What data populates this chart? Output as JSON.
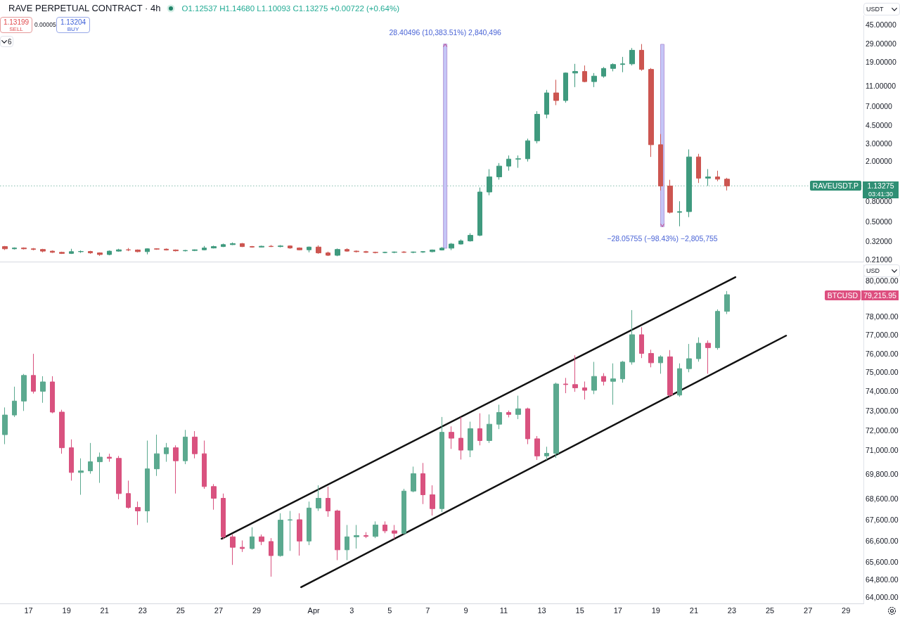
{
  "chart_data": [
    {
      "type": "candlestick",
      "title": "RAVE PERPETUAL CONTRACT · 4h",
      "subtitle": "O1.12537 H1.14680 L1.10093 C1.13275 +0.00722 (+0.64%)",
      "annotations": [
        "1.13199",
        "SELL",
        "0.00005",
        "1.13204",
        "BUY",
        "6",
        "USDT",
        "1.13275",
        "03:41:30"
      ],
      "log": true,
      "tick_labels": "y",
      "xlim": [
        "--03-15T12:00",
        "--04-29T22:00"
      ],
      "ylim": [
        0.2,
        55
      ],
      "yticks": [
        {
          "value": 45,
          "label": "45.00000"
        },
        {
          "value": 29,
          "label": "29.00000"
        },
        {
          "value": 19,
          "label": "19.00000"
        },
        {
          "value": 11,
          "label": "11.00000"
        },
        {
          "value": 7,
          "label": "7.00000"
        },
        {
          "value": 4.5,
          "label": "4.50000"
        },
        {
          "value": 3,
          "label": "3.00000"
        },
        {
          "value": 2,
          "label": "2.00000"
        },
        {
          "value": 0.8,
          "label": "0.80000"
        },
        {
          "value": 0.5,
          "label": "0.50000"
        },
        {
          "value": 0.32,
          "label": "0.32000"
        },
        {
          "value": 0.21,
          "label": "0.21000"
        }
      ],
      "ref_lines": [
        {
          "axis": "y",
          "value": 1.13275,
          "label": "RAVEUSDT.P",
          "color": "#2f8f74",
          "line_style": "dotted"
        }
      ],
      "x": [
        "--03-15T18:00",
        "--03-16T06:00",
        "--03-16T18:00",
        "--03-17T06:00",
        "--03-17T18:00",
        "--03-18T06:00",
        "--03-18T18:00",
        "--03-19T06:00",
        "--03-19T18:00",
        "--03-20T06:00",
        "--03-20T18:00",
        "--03-21T06:00",
        "--03-21T18:00",
        "--03-22T06:00",
        "--03-22T18:00",
        "--03-23T06:00",
        "--03-23T18:00",
        "--03-24T06:00",
        "--03-24T18:00",
        "--03-25T06:00",
        "--03-25T18:00",
        "--03-26T06:00",
        "--03-26T18:00",
        "--03-27T06:00",
        "--03-27T18:00",
        "--03-28T06:00",
        "--03-28T18:00",
        "--03-29T06:00",
        "--03-29T18:00",
        "--03-30T06:00",
        "--03-30T18:00",
        "--03-31T06:00",
        "--03-31T18:00",
        "--04-01T06:00",
        "--04-01T18:00",
        "--04-02T06:00",
        "--04-02T18:00",
        "--04-03T06:00",
        "--04-03T18:00",
        "--04-04T06:00",
        "--04-04T18:00",
        "--04-05T06:00",
        "--04-05T18:00",
        "--04-06T06:00",
        "--04-06T18:00",
        "--04-07T06:00",
        "--04-07T18:00",
        "--04-08T06:00",
        "--04-08T18:00",
        "--04-09T06:00",
        "--04-09T18:00",
        "--04-10T06:00",
        "--04-10T18:00",
        "--04-11T06:00",
        "--04-11T18:00",
        "--04-12T06:00",
        "--04-12T18:00",
        "--04-13T06:00",
        "--04-13T18:00",
        "--04-14T06:00",
        "--04-14T18:00",
        "--04-15T06:00",
        "--04-15T18:00",
        "--04-16T06:00",
        "--04-16T18:00",
        "--04-17T06:00",
        "--04-17T18:00",
        "--04-18T06:00",
        "--04-18T18:00",
        "--04-19T06:00",
        "--04-19T18:00",
        "--04-20T06:00",
        "--04-20T18:00",
        "--04-21T06:00",
        "--04-21T18:00",
        "--04-22T06:00",
        "--04-22T18:00"
      ],
      "ohlc": [
        [
          0.284,
          0.288,
          0.263,
          0.27
        ],
        [
          0.27,
          0.279,
          0.266,
          0.275
        ],
        [
          0.275,
          0.279,
          0.266,
          0.27
        ],
        [
          0.27,
          0.275,
          0.261,
          0.266
        ],
        [
          0.266,
          0.27,
          0.249,
          0.256
        ],
        [
          0.256,
          0.26,
          0.246,
          0.249
        ],
        [
          0.249,
          0.253,
          0.24,
          0.243
        ],
        [
          0.243,
          0.27,
          0.24,
          0.253
        ],
        [
          0.253,
          0.26,
          0.246,
          0.254
        ],
        [
          0.254,
          0.258,
          0.241,
          0.246
        ],
        [
          0.246,
          0.249,
          0.23,
          0.237
        ],
        [
          0.237,
          0.26,
          0.233,
          0.256
        ],
        [
          0.256,
          0.27,
          0.253,
          0.264
        ],
        [
          0.264,
          0.275,
          0.256,
          0.263
        ],
        [
          0.263,
          0.266,
          0.249,
          0.253
        ],
        [
          0.253,
          0.273,
          0.238,
          0.27
        ],
        [
          0.27,
          0.273,
          0.264,
          0.268
        ],
        [
          0.268,
          0.272,
          0.26,
          0.263
        ],
        [
          0.263,
          0.266,
          0.254,
          0.258
        ],
        [
          0.258,
          0.263,
          0.254,
          0.26
        ],
        [
          0.26,
          0.266,
          0.256,
          0.264
        ],
        [
          0.264,
          0.288,
          0.261,
          0.275
        ],
        [
          0.275,
          0.29,
          0.272,
          0.284
        ],
        [
          0.284,
          0.304,
          0.281,
          0.297
        ],
        [
          0.297,
          0.312,
          0.294,
          0.304
        ],
        [
          0.304,
          0.308,
          0.281,
          0.284
        ],
        [
          0.284,
          0.288,
          0.277,
          0.281
        ],
        [
          0.281,
          0.29,
          0.279,
          0.286
        ],
        [
          0.286,
          0.294,
          0.281,
          0.284
        ],
        [
          0.284,
          0.294,
          0.279,
          0.288
        ],
        [
          0.288,
          0.292,
          0.27,
          0.275
        ],
        [
          0.275,
          0.279,
          0.261,
          0.264
        ],
        [
          0.264,
          0.284,
          0.249,
          0.281
        ],
        [
          0.281,
          0.292,
          0.241,
          0.246
        ],
        [
          0.246,
          0.253,
          0.229,
          0.233
        ],
        [
          0.233,
          0.272,
          0.228,
          0.266
        ],
        [
          0.266,
          0.273,
          0.253,
          0.256
        ],
        [
          0.256,
          0.26,
          0.248,
          0.253
        ],
        [
          0.253,
          0.258,
          0.246,
          0.249
        ],
        [
          0.249,
          0.253,
          0.243,
          0.248
        ],
        [
          0.248,
          0.253,
          0.244,
          0.249
        ],
        [
          0.249,
          0.254,
          0.244,
          0.251
        ],
        [
          0.251,
          0.256,
          0.246,
          0.249
        ],
        [
          0.249,
          0.254,
          0.244,
          0.251
        ],
        [
          0.251,
          0.256,
          0.246,
          0.253
        ],
        [
          0.253,
          0.266,
          0.249,
          0.263
        ],
        [
          0.263,
          0.281,
          0.26,
          0.274
        ],
        [
          0.274,
          0.308,
          0.262,
          0.301
        ],
        [
          0.301,
          0.334,
          0.298,
          0.323
        ],
        [
          0.323,
          0.385,
          0.318,
          0.367
        ],
        [
          0.367,
          1.091,
          0.36,
          0.985
        ],
        [
          0.985,
          1.657,
          0.915,
          1.392
        ],
        [
          1.392,
          1.905,
          1.304,
          1.778
        ],
        [
          1.778,
          2.265,
          1.601,
          2.085
        ],
        [
          2.085,
          2.265,
          1.71,
          2.1
        ],
        [
          2.1,
          3.322,
          1.972,
          3.165
        ],
        [
          3.165,
          6.21,
          2.986,
          5.79
        ],
        [
          5.79,
          10.1,
          5.28,
          9.42
        ],
        [
          9.42,
          12.71,
          7.13,
          7.92
        ],
        [
          7.92,
          15.02,
          7.55,
          14.81
        ],
        [
          14.81,
          18.26,
          10.75,
          15.35
        ],
        [
          15.35,
          17.6,
          12.0,
          12.18
        ],
        [
          12.18,
          14.81,
          10.75,
          13.81
        ],
        [
          13.81,
          17.0,
          13.3,
          16.45
        ],
        [
          16.45,
          18.5,
          15.4,
          18.0
        ],
        [
          18.0,
          21.4,
          15.1,
          18.26
        ],
        [
          18.26,
          26.2,
          17.6,
          24.9
        ],
        [
          24.9,
          28.68,
          15.6,
          16.1
        ],
        [
          16.1,
          16.6,
          2.19,
          2.89
        ],
        [
          2.89,
          3.69,
          1.02,
          1.13
        ],
        [
          1.13,
          1.3,
          0.604,
          0.62
        ],
        [
          0.62,
          0.798,
          0.451,
          0.63
        ],
        [
          0.63,
          2.6,
          0.556,
          2.19
        ],
        [
          2.19,
          2.35,
          1.21,
          1.35
        ],
        [
          1.35,
          1.66,
          1.13,
          1.39
        ],
        [
          1.39,
          1.6,
          1.26,
          1.32
        ],
        [
          1.32,
          1.36,
          1.02,
          1.13275
        ]
      ],
      "colors": [
        "#cc5550",
        "#3f9a7e",
        "#cc5550",
        "#cc5550",
        "#cc5550",
        "#cc5550",
        "#cc5550",
        "#3f9a7e",
        "#3f9a7e",
        "#cc5550",
        "#cc5550",
        "#3f9a7e",
        "#3f9a7e",
        "#cc5550",
        "#cc5550",
        "#3f9a7e",
        "#cc5550",
        "#cc5550",
        "#cc5550",
        "#3f9a7e",
        "#3f9a7e",
        "#3f9a7e",
        "#3f9a7e",
        "#3f9a7e",
        "#3f9a7e",
        "#cc5550",
        "#cc5550",
        "#3f9a7e",
        "#cc5550",
        "#3f9a7e",
        "#cc5550",
        "#cc5550",
        "#3f9a7e",
        "#cc5550",
        "#cc5550",
        "#3f9a7e",
        "#cc5550",
        "#cc5550",
        "#cc5550",
        "#cc5550",
        "#3f9a7e",
        "#3f9a7e",
        "#cc5550",
        "#3f9a7e",
        "#3f9a7e",
        "#3f9a7e",
        "#3f9a7e",
        "#3f9a7e",
        "#3f9a7e",
        "#3f9a7e",
        "#3f9a7e",
        "#3f9a7e",
        "#3f9a7e",
        "#3f9a7e",
        "#3f9a7e",
        "#3f9a7e",
        "#3f9a7e",
        "#3f9a7e",
        "#cc5550",
        "#3f9a7e",
        "#3f9a7e",
        "#cc5550",
        "#3f9a7e",
        "#3f9a7e",
        "#3f9a7e",
        "#3f9a7e",
        "#3f9a7e",
        "#cc5550",
        "#cc5550",
        "#cc5550",
        "#cc5550",
        "#3f9a7e",
        "#3f9a7e",
        "#cc5550",
        "#3f9a7e",
        "#cc5550",
        "#cc5550"
      ],
      "series": [
        {
          "type": "bar",
          "x": [
            "--04-07T22:00",
            "--04-19T08:10"
          ],
          "base": [
            0.2736,
            28.505
          ],
          "values": [
            28.40496,
            -28.05755
          ],
          "color": "#c5c6f7",
          "value_labels": [
            "28.40496 (10,383.51%) 2,840,496",
            "−28.05755 (−98.43%) −2,805,755"
          ]
        }
      ]
    },
    {
      "type": "candlestick",
      "annotations": [
        "USD",
        "BTCUSD",
        "79,215.95"
      ],
      "log": true,
      "xlim": [
        "--03-15T12:00",
        "--04-29T22:00"
      ],
      "xticks": [
        {
          "value": "--03-17",
          "label": "17"
        },
        {
          "value": "--03-19",
          "label": "19"
        },
        {
          "value": "--03-21",
          "label": "21"
        },
        {
          "value": "--03-23",
          "label": "23"
        },
        {
          "value": "--03-25",
          "label": "25"
        },
        {
          "value": "--03-27",
          "label": "27"
        },
        {
          "value": "--03-29",
          "label": "29"
        },
        {
          "value": "--04-01",
          "label": "Apr"
        },
        {
          "value": "--04-03",
          "label": "3"
        },
        {
          "value": "--04-05",
          "label": "5"
        },
        {
          "value": "--04-07",
          "label": "7"
        },
        {
          "value": "--04-09",
          "label": "9"
        },
        {
          "value": "--04-11",
          "label": "11"
        },
        {
          "value": "--04-13",
          "label": "13"
        },
        {
          "value": "--04-15",
          "label": "15"
        },
        {
          "value": "--04-17",
          "label": "17"
        },
        {
          "value": "--04-19",
          "label": "19"
        },
        {
          "value": "--04-21",
          "label": "21"
        },
        {
          "value": "--04-23",
          "label": "23"
        },
        {
          "value": "--04-25",
          "label": "25"
        },
        {
          "value": "--04-27",
          "label": "27"
        },
        {
          "value": "--04-29",
          "label": "29"
        }
      ],
      "ylim": [
        63700,
        80900
      ],
      "yticks": [
        {
          "value": 80000,
          "label": "80,000.00"
        },
        {
          "value": 78000,
          "label": "78,000.00"
        },
        {
          "value": 77000,
          "label": "77,000.00"
        },
        {
          "value": 76000,
          "label": "76,000.00"
        },
        {
          "value": 75000,
          "label": "75,000.00"
        },
        {
          "value": 74000,
          "label": "74,000.00"
        },
        {
          "value": 73000,
          "label": "73,000.00"
        },
        {
          "value": 72000,
          "label": "72,000.00"
        },
        {
          "value": 71000,
          "label": "71,000.00"
        },
        {
          "value": 69800,
          "label": "69,800.00"
        },
        {
          "value": 68600,
          "label": "68,600.00"
        },
        {
          "value": 67600,
          "label": "67,600.00"
        },
        {
          "value": 66600,
          "label": "66,600.00"
        },
        {
          "value": 65600,
          "label": "65,600.00"
        },
        {
          "value": 64800,
          "label": "64,800.00"
        },
        {
          "value": 64000,
          "label": "64,000.00"
        }
      ],
      "x": [
        "--03-15T18:00",
        "--03-16T06:00",
        "--03-16T18:00",
        "--03-17T06:00",
        "--03-17T18:00",
        "--03-18T06:00",
        "--03-18T18:00",
        "--03-19T06:00",
        "--03-19T18:00",
        "--03-20T06:00",
        "--03-20T18:00",
        "--03-21T06:00",
        "--03-21T18:00",
        "--03-22T06:00",
        "--03-22T18:00",
        "--03-23T06:00",
        "--03-23T18:00",
        "--03-24T06:00",
        "--03-24T18:00",
        "--03-25T06:00",
        "--03-25T18:00",
        "--03-26T06:00",
        "--03-26T18:00",
        "--03-27T06:00",
        "--03-27T18:00",
        "--03-28T06:00",
        "--03-28T18:00",
        "--03-29T06:00",
        "--03-29T18:00",
        "--03-30T06:00",
        "--03-30T18:00",
        "--03-31T06:00",
        "--03-31T18:00",
        "--04-01T06:00",
        "--04-01T18:00",
        "--04-02T06:00",
        "--04-02T18:00",
        "--04-03T06:00",
        "--04-03T18:00",
        "--04-04T06:00",
        "--04-04T18:00",
        "--04-05T06:00",
        "--04-05T18:00",
        "--04-06T06:00",
        "--04-06T18:00",
        "--04-07T06:00",
        "--04-07T18:00",
        "--04-08T06:00",
        "--04-08T18:00",
        "--04-09T06:00",
        "--04-09T18:00",
        "--04-10T06:00",
        "--04-10T18:00",
        "--04-11T06:00",
        "--04-11T18:00",
        "--04-12T06:00",
        "--04-12T18:00",
        "--04-13T06:00",
        "--04-13T18:00",
        "--04-14T06:00",
        "--04-14T18:00",
        "--04-15T06:00",
        "--04-15T18:00",
        "--04-16T06:00",
        "--04-16T18:00",
        "--04-17T06:00",
        "--04-17T18:00",
        "--04-18T06:00",
        "--04-18T18:00",
        "--04-19T06:00",
        "--04-19T18:00",
        "--04-20T06:00",
        "--04-20T18:00",
        "--04-21T06:00",
        "--04-21T18:00",
        "--04-22T06:00",
        "--04-22T18:00"
      ],
      "ohlc": [
        [
          71770,
          73160,
          71290,
          72770
        ],
        [
          72770,
          74240,
          72670,
          73490
        ],
        [
          73490,
          74910,
          72980,
          74830
        ],
        [
          74830,
          75980,
          73880,
          74000
        ],
        [
          74000,
          74790,
          73400,
          74490
        ],
        [
          74490,
          74790,
          72860,
          72920
        ],
        [
          72920,
          73040,
          70810,
          71110
        ],
        [
          71110,
          71530,
          69480,
          69880
        ],
        [
          69880,
          70580,
          68790,
          69960
        ],
        [
          69960,
          71350,
          69820,
          70410
        ],
        [
          70410,
          70870,
          69370,
          70640
        ],
        [
          70640,
          70810,
          70410,
          70580
        ],
        [
          70580,
          70700,
          68570,
          68850
        ],
        [
          68850,
          69480,
          68120,
          68180
        ],
        [
          68180,
          68460,
          67340,
          68010
        ],
        [
          68010,
          71470,
          67450,
          70060
        ],
        [
          70060,
          71770,
          69710,
          70810
        ],
        [
          70810,
          71350,
          70410,
          71110
        ],
        [
          71110,
          71230,
          68850,
          70460
        ],
        [
          70460,
          72010,
          70290,
          71650
        ],
        [
          71650,
          71950,
          70580,
          70810
        ],
        [
          70810,
          71470,
          69080,
          69190
        ],
        [
          69190,
          69310,
          68070,
          68620
        ],
        [
          68620,
          68850,
          66670,
          66780
        ],
        [
          66780,
          66890,
          65470,
          66290
        ],
        [
          66290,
          66610,
          66070,
          66230
        ],
        [
          66230,
          67230,
          66180,
          66780
        ],
        [
          66780,
          66890,
          66390,
          66560
        ],
        [
          66560,
          66720,
          64930,
          65900
        ],
        [
          65900,
          67900,
          65850,
          67570
        ],
        [
          67570,
          68010,
          66120,
          67590
        ],
        [
          67590,
          67900,
          65900,
          66580
        ],
        [
          66580,
          68460,
          66390,
          68150
        ],
        [
          68150,
          69250,
          68010,
          68620
        ],
        [
          68620,
          69190,
          67730,
          68010
        ],
        [
          68010,
          68070,
          65690,
          66170
        ],
        [
          66170,
          67340,
          65690,
          66780
        ],
        [
          66780,
          67340,
          66230,
          66840
        ],
        [
          66840,
          67000,
          66720,
          66800
        ],
        [
          66800,
          67510,
          66720,
          67340
        ],
        [
          67340,
          67510,
          66950,
          67060
        ],
        [
          67060,
          67340,
          66670,
          66950
        ],
        [
          66950,
          69080,
          66890,
          68970
        ],
        [
          68970,
          70170,
          68910,
          69820
        ],
        [
          69820,
          70350,
          68340,
          68790
        ],
        [
          68790,
          69250,
          67790,
          68120
        ],
        [
          68120,
          72670,
          67960,
          71890
        ],
        [
          71890,
          72190,
          71050,
          71590
        ],
        [
          71590,
          72670,
          70520,
          70990
        ],
        [
          70990,
          72430,
          70640,
          72070
        ],
        [
          72070,
          72860,
          71230,
          71470
        ],
        [
          71470,
          72800,
          71350,
          72300
        ],
        [
          72300,
          73300,
          72050,
          72900
        ],
        [
          72900,
          73000,
          72650,
          72800
        ],
        [
          72800,
          73770,
          72560,
          73090
        ],
        [
          73090,
          73150,
          71290,
          71560
        ],
        [
          71560,
          71700,
          70500,
          70700
        ],
        [
          70700,
          71160,
          70500,
          70830
        ],
        [
          70830,
          74450,
          70600,
          74380
        ],
        [
          74380,
          74700,
          73900,
          74350
        ],
        [
          74350,
          75900,
          73970,
          74180
        ],
        [
          74180,
          74510,
          73570,
          74050
        ],
        [
          74050,
          75550,
          73850,
          74780
        ],
        [
          74780,
          74950,
          74300,
          74520
        ],
        [
          74520,
          75470,
          73300,
          74650
        ],
        [
          74650,
          75600,
          74450,
          75540
        ],
        [
          75540,
          78360,
          75400,
          77010
        ],
        [
          77010,
          77420,
          75750,
          76000
        ],
        [
          76000,
          76200,
          75260,
          75500
        ],
        [
          75500,
          75900,
          74920,
          75820
        ],
        [
          75820,
          76180,
          73710,
          73800
        ],
        [
          73800,
          75470,
          73710,
          75190
        ],
        [
          75190,
          76510,
          75000,
          75720
        ],
        [
          75720,
          76870,
          75560,
          76550
        ],
        [
          76550,
          76700,
          74920,
          76310
        ],
        [
          76310,
          78400,
          76200,
          78290
        ],
        [
          78290,
          79420,
          78140,
          79215.95
        ]
      ],
      "colors": [
        "#5ba98f",
        "#5ba98f",
        "#5ba98f",
        "#d9527f",
        "#5ba98f",
        "#d9527f",
        "#d9527f",
        "#d9527f",
        "#5ba98f",
        "#5ba98f",
        "#5ba98f",
        "#d9527f",
        "#d9527f",
        "#d9527f",
        "#d9527f",
        "#5ba98f",
        "#5ba98f",
        "#5ba98f",
        "#d9527f",
        "#5ba98f",
        "#d9527f",
        "#d9527f",
        "#d9527f",
        "#d9527f",
        "#d9527f",
        "#d9527f",
        "#5ba98f",
        "#d9527f",
        "#d9527f",
        "#5ba98f",
        "#5ba98f",
        "#d9527f",
        "#5ba98f",
        "#5ba98f",
        "#d9527f",
        "#d9527f",
        "#5ba98f",
        "#5ba98f",
        "#d9527f",
        "#5ba98f",
        "#d9527f",
        "#d9527f",
        "#5ba98f",
        "#5ba98f",
        "#d9527f",
        "#d9527f",
        "#5ba98f",
        "#d9527f",
        "#d9527f",
        "#5ba98f",
        "#d9527f",
        "#5ba98f",
        "#5ba98f",
        "#d9527f",
        "#5ba98f",
        "#d9527f",
        "#d9527f",
        "#5ba98f",
        "#5ba98f",
        "#d9527f",
        "#d9527f",
        "#d9527f",
        "#5ba98f",
        "#d9527f",
        "#5ba98f",
        "#5ba98f",
        "#5ba98f",
        "#d9527f",
        "#d9527f",
        "#5ba98f",
        "#d9527f",
        "#5ba98f",
        "#5ba98f",
        "#5ba98f",
        "#d9527f",
        "#5ba98f",
        "#5ba98f"
      ],
      "series": [
        {
          "type": "line",
          "x": [
            "--03-27T03:40",
            "--04-23T04:20"
          ],
          "values": [
            66690,
            80200
          ],
          "color": "#111111"
        },
        {
          "type": "line",
          "x": [
            "--03-31T08:10",
            "--04-25T20:20"
          ],
          "values": [
            64450,
            76960
          ],
          "color": "#111111"
        }
      ]
    }
  ]
}
